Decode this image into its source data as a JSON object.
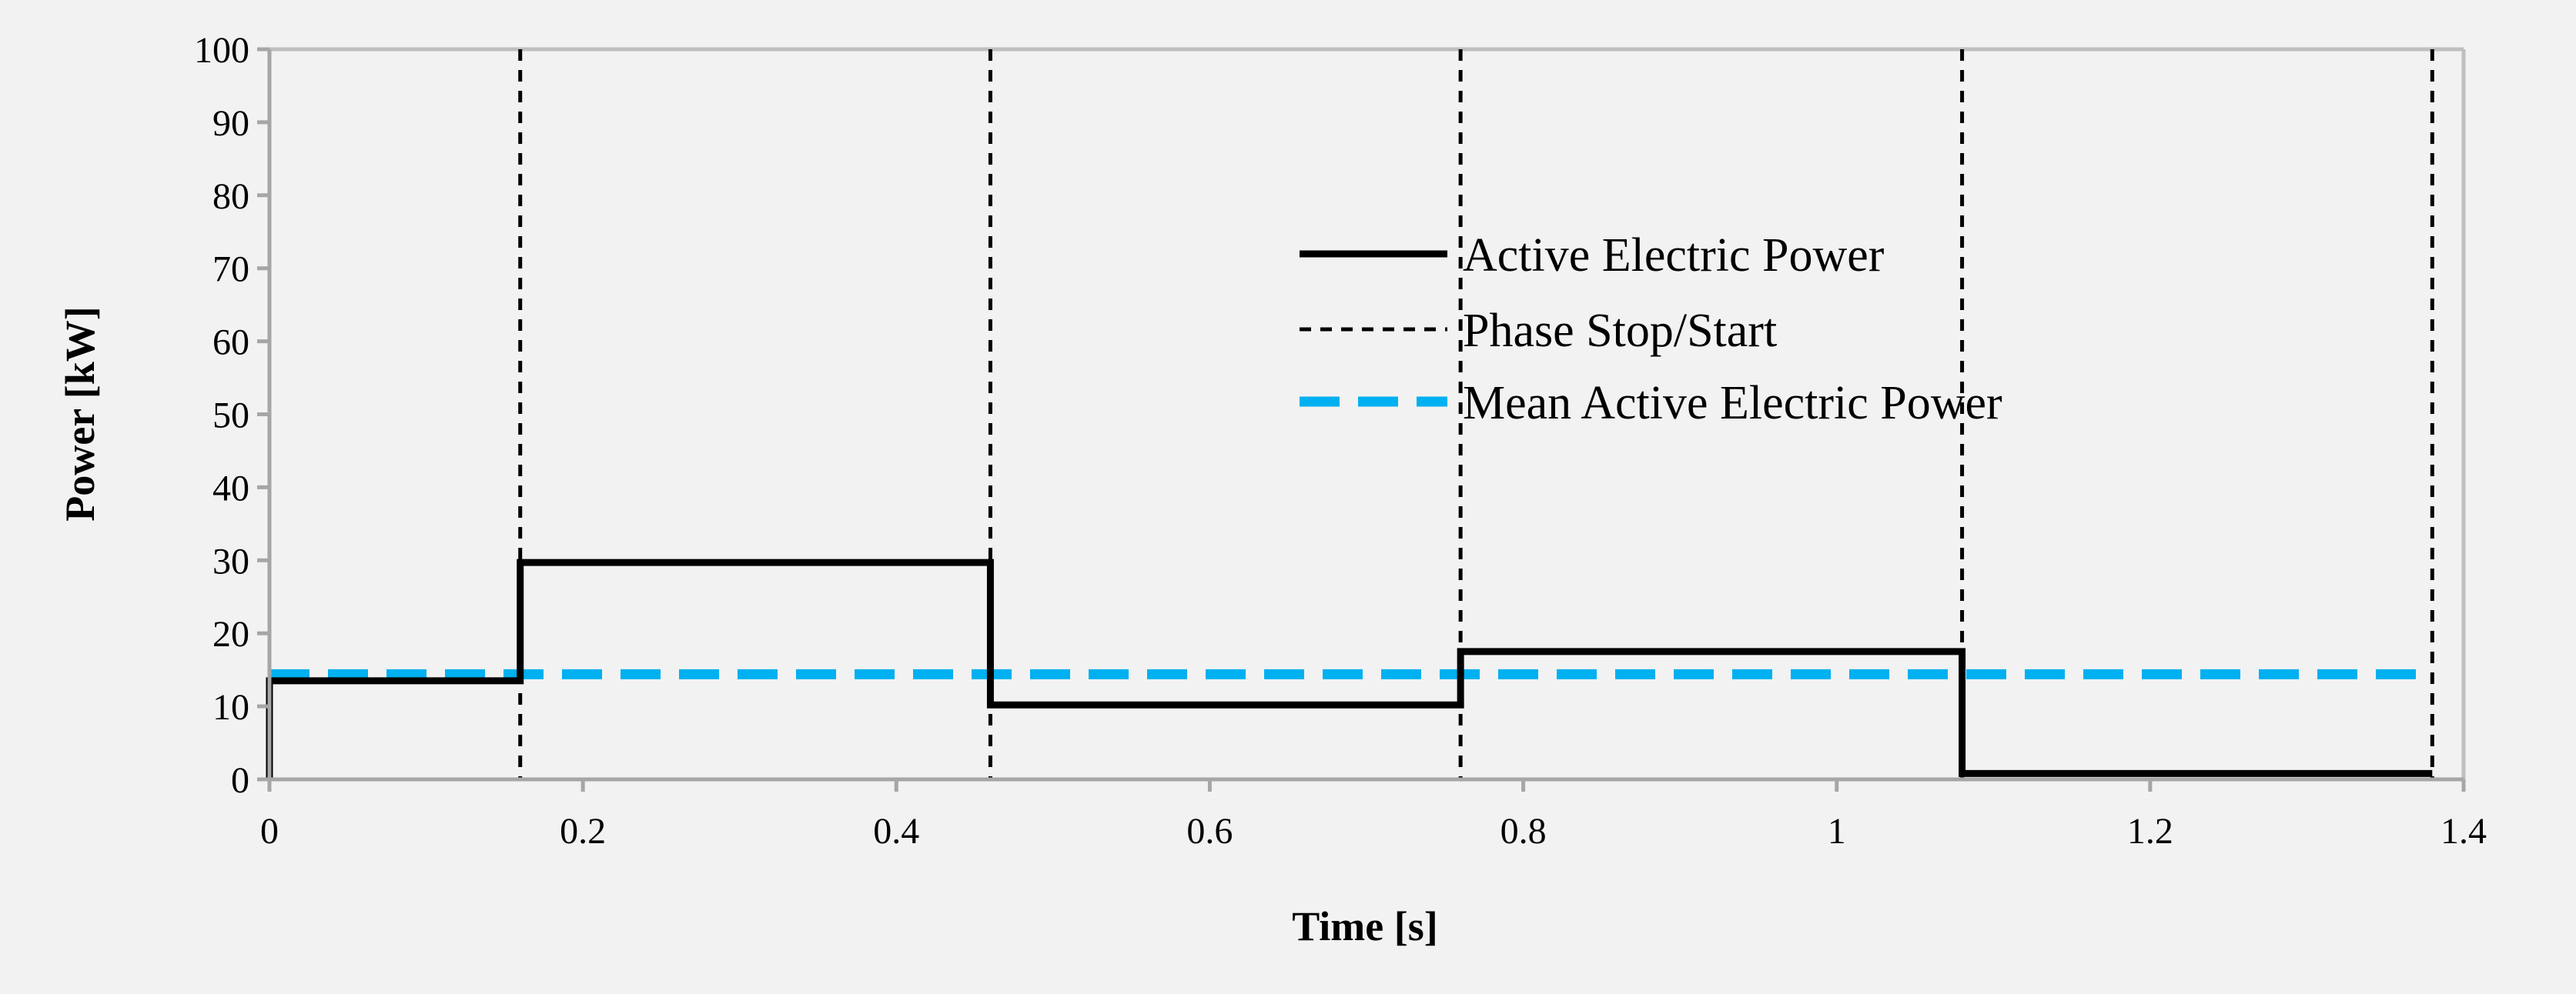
{
  "chart_data": {
    "type": "line",
    "xlabel": "Time [s]",
    "ylabel": "Power [kW]",
    "xlim": [
      0,
      1.4
    ],
    "ylim": [
      0,
      100
    ],
    "x_ticks": [
      0,
      0.2,
      0.4,
      0.6,
      0.8,
      1,
      1.2,
      1.4
    ],
    "x_tick_labels": [
      "0",
      "0.2",
      "0.4",
      "0.6",
      "0.8",
      "1",
      "1.2",
      "1.4"
    ],
    "y_ticks": [
      0,
      10,
      20,
      30,
      40,
      50,
      60,
      70,
      80,
      90,
      100
    ],
    "y_tick_labels": [
      "0",
      "10",
      "20",
      "30",
      "40",
      "50",
      "60",
      "70",
      "80",
      "90",
      "100"
    ],
    "grid": false,
    "legend_position": "upper-right",
    "series": [
      {
        "name": "Active Electric Power",
        "style": "step",
        "color": "#000000",
        "x": [
          0,
          0,
          0.16,
          0.16,
          0.46,
          0.46,
          0.76,
          0.76,
          1.08,
          1.08,
          1.38
        ],
        "y": [
          0,
          13.5,
          13.5,
          29.7,
          29.7,
          10.2,
          10.2,
          17.5,
          17.5,
          0.8,
          0.8
        ]
      },
      {
        "name": "Phase Stop/Start",
        "style": "vertical-dashed",
        "color": "#000000",
        "x": [
          0.16,
          0.46,
          0.76,
          1.08,
          1.38
        ]
      },
      {
        "name": "Mean Active Electric Power",
        "style": "horizontal-dashed",
        "color": "#00b0f0",
        "x": [
          0,
          1.38
        ],
        "y": [
          14.4,
          14.4
        ]
      }
    ]
  }
}
